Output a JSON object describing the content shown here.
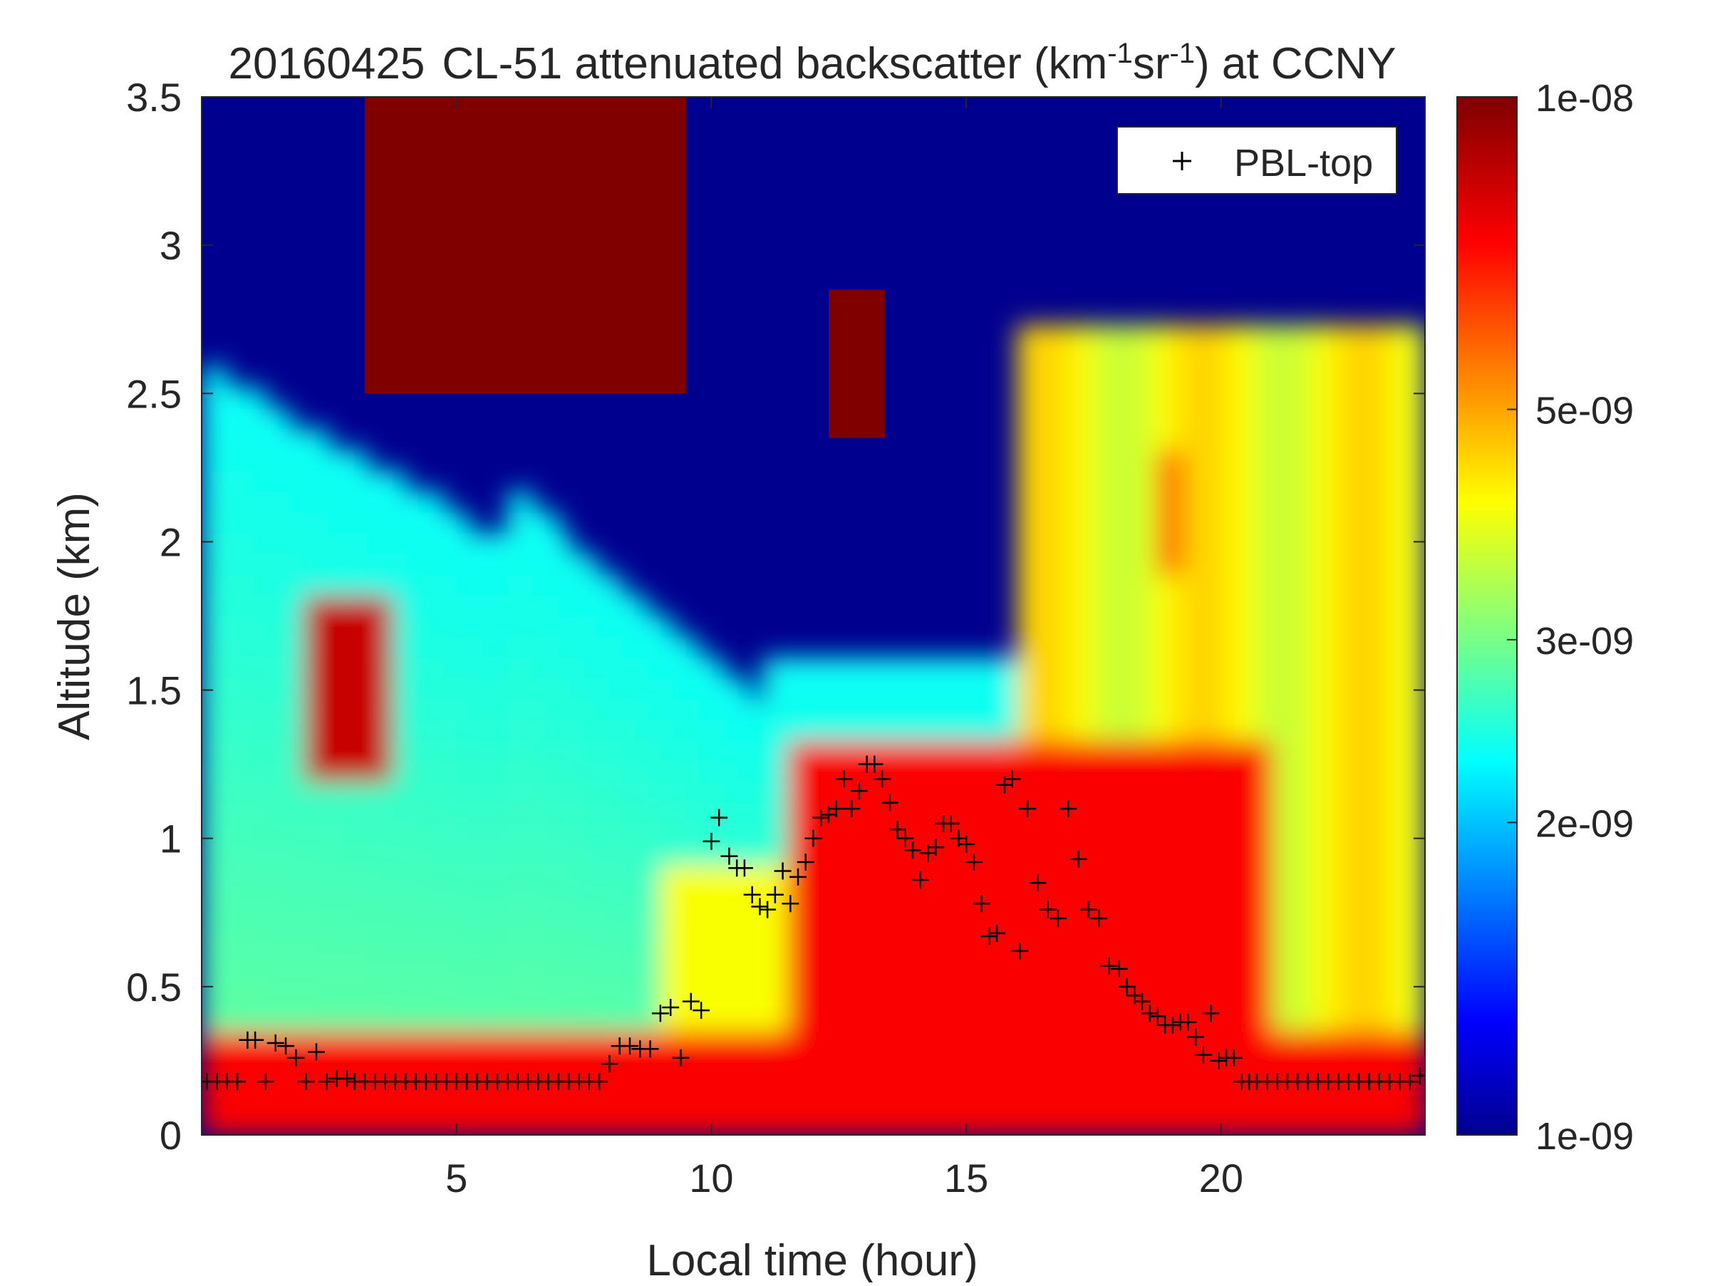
{
  "chart_data": {
    "type": "heatmap",
    "title": {
      "date": "20160425",
      "instrument": "CL-51 attenuated backscatter (km",
      "unit_km_exp": "-1",
      "unit_sr": "sr",
      "unit_sr_exp": "-1",
      "suffix": ") at CCNY"
    },
    "xlabel": "Local time (hour)",
    "ylabel": "Altitude (km)",
    "xlim": [
      0,
      24
    ],
    "ylim": [
      0,
      3.5
    ],
    "x_ticks": [
      5,
      10,
      15,
      20
    ],
    "y_ticks": [
      0,
      0.5,
      1,
      1.5,
      2,
      2.5,
      3,
      3.5
    ],
    "colorbar": {
      "scale": "log",
      "range": [
        1e-09,
        1e-08
      ],
      "ticks": [
        {
          "value": 1e-08,
          "label": "1e-08"
        },
        {
          "value": 5e-09,
          "label": "5e-09"
        },
        {
          "value": 3e-09,
          "label": "3e-09"
        },
        {
          "value": 2e-09,
          "label": "2e-09"
        },
        {
          "value": 1e-09,
          "label": "1e-09"
        }
      ],
      "colormap": "jet"
    },
    "legend": {
      "position": "top-right",
      "entries": [
        {
          "marker": "+",
          "label": "PBL-top"
        }
      ]
    },
    "backscatter_regions": [
      {
        "description": "surface aerosol layer",
        "x": [
          0,
          24
        ],
        "y": [
          0,
          0.35
        ],
        "level": 0.9
      },
      {
        "description": "residual layer blob",
        "x": [
          2,
          3.8
        ],
        "y": [
          1.2,
          1.8
        ],
        "level": 0.95
      },
      {
        "description": "daytime mixed layer",
        "x": [
          11.5,
          21
        ],
        "y": [
          0,
          1.3
        ],
        "level": 0.9
      },
      {
        "description": "upper cloud 1",
        "x": [
          3.2,
          9.5
        ],
        "y": [
          2.5,
          3.5
        ],
        "level": 1.0
      },
      {
        "description": "upper cloud 2",
        "x": [
          12.3,
          13.4
        ],
        "y": [
          2.35,
          2.85
        ],
        "level": 1.0
      },
      {
        "description": "elevated aerosol layer",
        "x": [
          16,
          24
        ],
        "y": [
          0.4,
          2.8
        ],
        "level": 0.65
      }
    ],
    "series": [
      {
        "name": "PBL-top",
        "marker": "+",
        "color": "#000000",
        "x": [
          0.1,
          0.3,
          0.5,
          0.7,
          0.9,
          1.05,
          1.25,
          1.45,
          1.65,
          1.85,
          2.05,
          2.25,
          2.45,
          2.65,
          2.85,
          3.0,
          3.2,
          3.4,
          3.6,
          3.8,
          4.0,
          4.2,
          4.4,
          4.6,
          4.8,
          5.0,
          5.2,
          5.4,
          5.6,
          5.8,
          6.0,
          6.2,
          6.4,
          6.6,
          6.8,
          7.0,
          7.2,
          7.4,
          7.6,
          7.8,
          8.0,
          8.2,
          8.4,
          8.6,
          8.8,
          9.0,
          9.2,
          9.4,
          9.6,
          9.8,
          10.0,
          10.15,
          10.35,
          10.5,
          10.65,
          10.8,
          10.95,
          11.1,
          11.25,
          11.4,
          11.55,
          11.7,
          11.85,
          12.0,
          12.15,
          12.3,
          12.45,
          12.6,
          12.75,
          12.9,
          13.05,
          13.2,
          13.35,
          13.5,
          13.65,
          13.8,
          13.95,
          14.1,
          14.25,
          14.4,
          14.55,
          14.7,
          14.85,
          15.0,
          15.15,
          15.3,
          15.45,
          15.6,
          15.75,
          15.9,
          16.05,
          16.2,
          16.4,
          16.6,
          16.8,
          17.0,
          17.2,
          17.4,
          17.6,
          17.8,
          18.0,
          18.15,
          18.3,
          18.45,
          18.6,
          18.75,
          18.9,
          19.05,
          19.2,
          19.35,
          19.5,
          19.65,
          19.8,
          19.95,
          20.1,
          20.25,
          20.4,
          20.55,
          20.7,
          20.9,
          21.1,
          21.3,
          21.5,
          21.7,
          21.9,
          22.1,
          22.3,
          22.5,
          22.7,
          22.9,
          23.1,
          23.3,
          23.5,
          23.7,
          23.9
        ],
        "y": [
          0.18,
          0.18,
          0.18,
          0.18,
          0.32,
          0.32,
          0.18,
          0.31,
          0.3,
          0.26,
          0.18,
          0.28,
          0.18,
          0.19,
          0.19,
          0.18,
          0.18,
          0.18,
          0.18,
          0.18,
          0.18,
          0.18,
          0.18,
          0.18,
          0.18,
          0.18,
          0.18,
          0.18,
          0.18,
          0.18,
          0.18,
          0.18,
          0.18,
          0.18,
          0.18,
          0.18,
          0.18,
          0.18,
          0.18,
          0.18,
          0.24,
          0.3,
          0.3,
          0.29,
          0.29,
          0.41,
          0.43,
          0.26,
          0.45,
          0.42,
          0.99,
          1.07,
          0.94,
          0.9,
          0.9,
          0.81,
          0.77,
          0.76,
          0.81,
          0.89,
          0.78,
          0.87,
          0.92,
          1.0,
          1.07,
          1.08,
          1.1,
          1.2,
          1.1,
          1.16,
          1.25,
          1.25,
          1.2,
          1.12,
          1.03,
          1.0,
          0.96,
          0.86,
          0.95,
          0.97,
          1.05,
          1.05,
          1.0,
          0.98,
          0.92,
          0.78,
          0.67,
          0.68,
          1.18,
          1.2,
          0.62,
          1.1,
          0.85,
          0.76,
          0.73,
          1.1,
          0.93,
          0.76,
          0.73,
          0.57,
          0.56,
          0.5,
          0.47,
          0.45,
          0.41,
          0.4,
          0.37,
          0.37,
          0.38,
          0.38,
          0.33,
          0.27,
          0.41,
          0.25,
          0.26,
          0.26,
          0.18,
          0.18,
          0.18,
          0.18,
          0.18,
          0.18,
          0.18,
          0.18,
          0.18,
          0.18,
          0.18,
          0.18,
          0.18,
          0.18,
          0.18,
          0.18,
          0.18,
          0.18,
          0.2
        ]
      }
    ]
  }
}
